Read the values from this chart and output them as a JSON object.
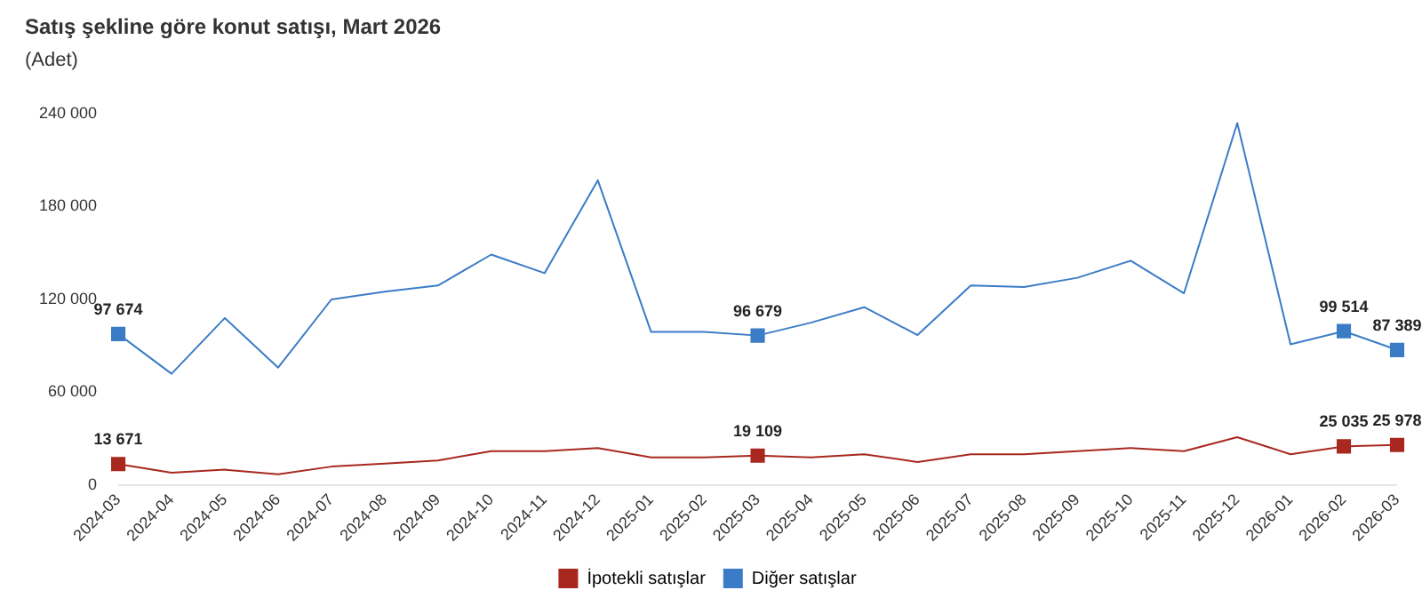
{
  "chart_data": {
    "type": "line",
    "title": "Satış şekline göre konut satışı, Mart 2026",
    "subtitle": "(Adet)",
    "categories": [
      "2024-03",
      "2024-04",
      "2024-05",
      "2024-06",
      "2024-07",
      "2024-08",
      "2024-09",
      "2024-10",
      "2024-11",
      "2024-12",
      "2025-01",
      "2025-02",
      "2025-03",
      "2025-04",
      "2025-05",
      "2025-06",
      "2025-07",
      "2025-08",
      "2025-09",
      "2025-10",
      "2025-11",
      "2025-12",
      "2026-01",
      "2026-02",
      "2026-03"
    ],
    "series": [
      {
        "name": "İpotekli satışlar",
        "color": "#a8281f",
        "values": [
          13671,
          8000,
          10000,
          7000,
          12000,
          14000,
          16000,
          22000,
          22000,
          24000,
          18000,
          18000,
          19109,
          18000,
          20000,
          15000,
          20000,
          20000,
          22000,
          24000,
          22000,
          31000,
          20000,
          25035,
          25978
        ],
        "value_labels": [
          "13 671",
          null,
          null,
          null,
          null,
          null,
          null,
          null,
          null,
          null,
          null,
          null,
          "19 109",
          null,
          null,
          null,
          null,
          null,
          null,
          null,
          null,
          null,
          null,
          "25 035",
          "25 978"
        ]
      },
      {
        "name": "Diğer satışlar",
        "color": "#3b7cc6",
        "values": [
          97674,
          72000,
          108000,
          76000,
          120000,
          125000,
          129000,
          149000,
          137000,
          197000,
          99000,
          99000,
          96679,
          105000,
          115000,
          97000,
          129000,
          128000,
          134000,
          145000,
          124000,
          234000,
          91000,
          99514,
          87389
        ],
        "value_labels": [
          "97 674",
          null,
          null,
          null,
          null,
          null,
          null,
          null,
          null,
          null,
          null,
          null,
          "96 679",
          null,
          null,
          null,
          null,
          null,
          null,
          null,
          null,
          null,
          null,
          "99 514",
          "87 389"
        ]
      }
    ],
    "ylim": [
      0,
      240000
    ],
    "yticks": [
      {
        "value": 0,
        "label": "0"
      },
      {
        "value": 60000,
        "label": "60 000"
      },
      {
        "value": 120000,
        "label": "120 000"
      },
      {
        "value": 180000,
        "label": "180 000"
      },
      {
        "value": 240000,
        "label": "240 000"
      }
    ],
    "grid": false,
    "legend": "bottom",
    "line_style": "solid"
  }
}
